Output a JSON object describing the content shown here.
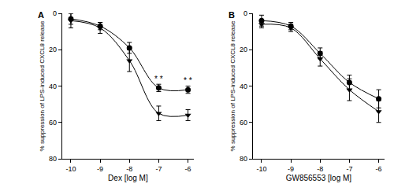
{
  "chart_data": [
    {
      "type": "scatter",
      "title": "A",
      "x_label": "Dex [log M]",
      "y_label": "% suppression of LPS-induced CXCL8 release",
      "x": [
        -10,
        -9,
        -8,
        -7,
        -6
      ],
      "xlim": [
        -10.3,
        -5.8
      ],
      "xticks": [
        -10,
        -9,
        -8,
        -7,
        -6
      ],
      "ylim": [
        80,
        0
      ],
      "yticks": [
        0,
        20,
        40,
        60,
        80
      ],
      "series": [
        {
          "color": "#000000",
          "marker": "circle",
          "line_style": "spline",
          "values": [
            3,
            7,
            19,
            41,
            42
          ],
          "errors": [
            3,
            2,
            3,
            2,
            2
          ]
        },
        {
          "color": "#000000",
          "marker": "triangle-down",
          "line_style": "spline",
          "values": [
            4,
            8,
            26,
            55,
            56
          ],
          "errors": [
            4,
            3,
            6,
            4,
            3
          ]
        }
      ],
      "annotations": [
        {
          "x": -7,
          "y": 36,
          "text": "* *"
        },
        {
          "x": -6,
          "y": 37,
          "text": "* *"
        }
      ]
    },
    {
      "type": "scatter",
      "title": "B",
      "x_label": "GW856553 [log M]",
      "y_label": "% suppression of LPS-induced CXCL8 release",
      "x": [
        -10,
        -9,
        -8,
        -7,
        -6
      ],
      "xlim": [
        -10.3,
        -5.8
      ],
      "xticks": [
        -10,
        -9,
        -8,
        -7,
        -6
      ],
      "ylim": [
        80,
        0
      ],
      "yticks": [
        0,
        20,
        40,
        60,
        80
      ],
      "series": [
        {
          "color": "#000000",
          "marker": "circle",
          "line_style": "spline",
          "values": [
            4,
            7,
            22,
            38,
            47
          ],
          "errors": [
            3,
            2,
            3,
            4,
            5
          ]
        },
        {
          "color": "#000000",
          "marker": "triangle-down",
          "line_style": "spline",
          "values": [
            6,
            8,
            25,
            42,
            54
          ],
          "errors": [
            2,
            2,
            4,
            6,
            6
          ]
        }
      ]
    }
  ]
}
